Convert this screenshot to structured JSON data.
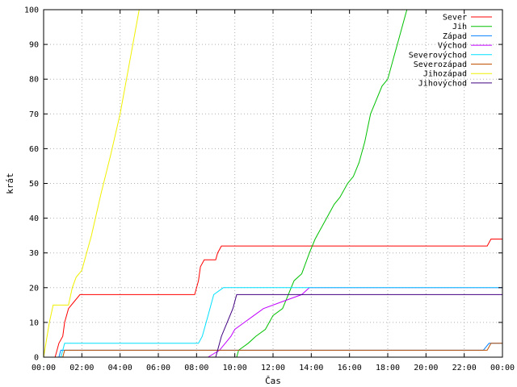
{
  "chart_data": {
    "type": "line",
    "title": "",
    "xlabel": "Čas",
    "ylabel": "krát",
    "xlim": [
      0,
      24
    ],
    "ylim": [
      0,
      100
    ],
    "x_ticks": [
      "00:00",
      "02:00",
      "04:00",
      "06:00",
      "08:00",
      "10:00",
      "12:00",
      "14:00",
      "16:00",
      "18:00",
      "20:00",
      "22:00",
      "00:00"
    ],
    "y_ticks": [
      "0",
      "10",
      "20",
      "30",
      "40",
      "50",
      "60",
      "70",
      "80",
      "90",
      "100"
    ],
    "grid": true,
    "legend_position": "top-right",
    "x_unit": "hours since 00:00",
    "series": [
      {
        "name": "Sever",
        "color": "#ff0000",
        "points": [
          [
            0.6,
            0
          ],
          [
            0.7,
            2
          ],
          [
            0.8,
            4
          ],
          [
            1.0,
            6
          ],
          [
            1.1,
            10
          ],
          [
            1.3,
            14
          ],
          [
            1.6,
            16
          ],
          [
            1.9,
            18
          ],
          [
            7.9,
            18
          ],
          [
            8.1,
            22
          ],
          [
            8.2,
            26
          ],
          [
            8.4,
            28
          ],
          [
            9.0,
            28
          ],
          [
            9.1,
            30
          ],
          [
            9.3,
            32
          ],
          [
            23.2,
            32
          ],
          [
            23.4,
            34
          ],
          [
            24,
            34
          ]
        ]
      },
      {
        "name": "Jih",
        "color": "#00c000",
        "points": [
          [
            10.1,
            0
          ],
          [
            10.2,
            2
          ],
          [
            10.7,
            4
          ],
          [
            11.1,
            6
          ],
          [
            11.6,
            8
          ],
          [
            12.0,
            12
          ],
          [
            12.5,
            14
          ],
          [
            12.8,
            18
          ],
          [
            13.1,
            22
          ],
          [
            13.5,
            24
          ],
          [
            13.9,
            30
          ],
          [
            14.2,
            34
          ],
          [
            14.5,
            37
          ],
          [
            14.8,
            40
          ],
          [
            15.2,
            44
          ],
          [
            15.5,
            46
          ],
          [
            15.9,
            50
          ],
          [
            16.2,
            52
          ],
          [
            16.5,
            56
          ],
          [
            16.8,
            62
          ],
          [
            17.1,
            70
          ],
          [
            17.4,
            74
          ],
          [
            17.7,
            78
          ],
          [
            18.0,
            80
          ],
          [
            18.3,
            86
          ],
          [
            18.6,
            92
          ],
          [
            18.9,
            98
          ],
          [
            19.0,
            100
          ]
        ]
      },
      {
        "name": "Západ",
        "color": "#0080ff",
        "points": [
          [
            0.8,
            0
          ],
          [
            0.9,
            2
          ],
          [
            23.0,
            2
          ],
          [
            23.3,
            4
          ],
          [
            24,
            4
          ]
        ]
      },
      {
        "name": "Východ",
        "color": "#c000ff",
        "points": [
          [
            8.6,
            0
          ],
          [
            9.2,
            2
          ],
          [
            9.5,
            4
          ],
          [
            9.8,
            6
          ],
          [
            10.0,
            8
          ],
          [
            10.5,
            10
          ],
          [
            11.0,
            12
          ],
          [
            11.5,
            14
          ],
          [
            12.5,
            16
          ],
          [
            13.5,
            18
          ],
          [
            13.9,
            20
          ],
          [
            24,
            20
          ]
        ]
      },
      {
        "name": "Severovýchod",
        "color": "#00e0ff",
        "points": [
          [
            0.9,
            0
          ],
          [
            1.0,
            2
          ],
          [
            1.1,
            4
          ],
          [
            8.1,
            4
          ],
          [
            8.3,
            6
          ],
          [
            8.5,
            10
          ],
          [
            8.7,
            14
          ],
          [
            8.9,
            18
          ],
          [
            9.4,
            20
          ],
          [
            24,
            20
          ]
        ]
      },
      {
        "name": "Severozápad",
        "color": "#c05000",
        "points": [
          [
            1.0,
            0
          ],
          [
            1.1,
            2
          ],
          [
            23.2,
            2
          ],
          [
            23.4,
            4
          ],
          [
            24,
            4
          ]
        ]
      },
      {
        "name": "Jihozápad",
        "color": "#f0f000",
        "points": [
          [
            0.0,
            0
          ],
          [
            0.3,
            10
          ],
          [
            0.5,
            15
          ],
          [
            1.3,
            15
          ],
          [
            1.5,
            20
          ],
          [
            1.7,
            23
          ],
          [
            2.0,
            25
          ],
          [
            2.5,
            35
          ],
          [
            3.0,
            47
          ],
          [
            3.5,
            58
          ],
          [
            4.0,
            70
          ],
          [
            4.5,
            85
          ],
          [
            5.0,
            100
          ]
        ]
      },
      {
        "name": "Jihovýchod",
        "color": "#400080",
        "points": [
          [
            9.0,
            0
          ],
          [
            9.1,
            2
          ],
          [
            9.3,
            6
          ],
          [
            9.6,
            10
          ],
          [
            9.9,
            14
          ],
          [
            10.1,
            18
          ],
          [
            24,
            18
          ]
        ]
      }
    ]
  }
}
